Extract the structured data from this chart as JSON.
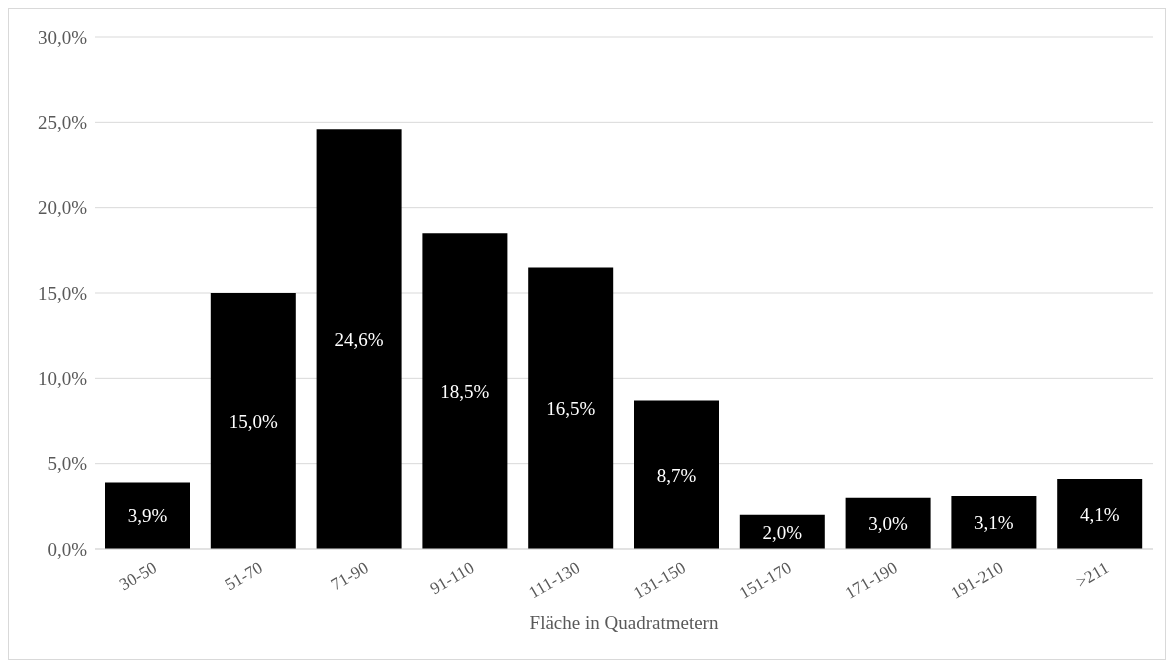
{
  "chart_data": {
    "type": "bar",
    "xlabel": "Fläche in Quadratmetern",
    "categories": [
      "30-50",
      "51-70",
      "71-90",
      "91-110",
      "111-130",
      "131-150",
      "151-170",
      "171-190",
      "191-210",
      ">211"
    ],
    "values": [
      3.9,
      15.0,
      24.6,
      18.5,
      16.5,
      8.7,
      2.0,
      3.0,
      3.1,
      4.1
    ],
    "value_labels": [
      "3,9%",
      "15,0%",
      "24,6%",
      "18,5%",
      "16,5%",
      "8,7%",
      "2,0%",
      "3,0%",
      "3,1%",
      "4,1%"
    ],
    "color": "#000000",
    "ylim": [
      0,
      30
    ],
    "yticks": [
      {
        "value": 0,
        "label": "0,0%"
      },
      {
        "value": 5,
        "label": "5,0%"
      },
      {
        "value": 10,
        "label": "10,0%"
      },
      {
        "value": 15,
        "label": "15,0%"
      },
      {
        "value": 20,
        "label": "20,0%"
      },
      {
        "value": 25,
        "label": "25,0%"
      },
      {
        "value": 30,
        "label": "30,0%"
      }
    ],
    "grid": "y"
  }
}
